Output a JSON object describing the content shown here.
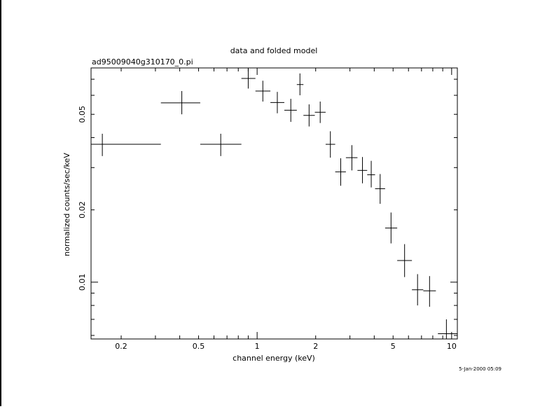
{
  "chart_data": {
    "type": "scatter",
    "title": "data and folded model",
    "subtitle": "ad95009040g310170_0.pi",
    "xlabel": "channel energy (keV)",
    "ylabel": "normalized counts/sec/keV",
    "x_scale": "log",
    "y_scale": "log",
    "xlim": [
      0.14,
      10.7
    ],
    "ylim": [
      0.0058,
      0.078
    ],
    "x_ticks": [
      {
        "value": 0.2,
        "label": "0.2"
      },
      {
        "value": 0.5,
        "label": "0.5"
      },
      {
        "value": 1,
        "label": "1"
      },
      {
        "value": 2,
        "label": "2"
      },
      {
        "value": 5,
        "label": "5"
      },
      {
        "value": 10,
        "label": "10"
      }
    ],
    "y_ticks": [
      {
        "value": 0.01,
        "label": "0.01"
      },
      {
        "value": 0.02,
        "label": "0.02"
      },
      {
        "value": 0.05,
        "label": "0.05"
      }
    ],
    "grid": false,
    "legend": "none",
    "series": [
      {
        "points": [
          {
            "x": 0.16,
            "y": 0.0375,
            "xlo": 0.14,
            "xhi": 0.32,
            "ylo": 0.0335,
            "yhi": 0.0415
          },
          {
            "x": 0.41,
            "y": 0.0558,
            "xlo": 0.32,
            "xhi": 0.51,
            "ylo": 0.05,
            "yhi": 0.0625
          },
          {
            "x": 0.65,
            "y": 0.0375,
            "xlo": 0.51,
            "xhi": 0.83,
            "ylo": 0.0335,
            "yhi": 0.0415
          },
          {
            "x": 0.9,
            "y": 0.0705,
            "xlo": 0.83,
            "xhi": 0.98,
            "ylo": 0.064,
            "yhi": 0.0775
          },
          {
            "x": 1.07,
            "y": 0.0625,
            "xlo": 0.98,
            "xhi": 1.17,
            "ylo": 0.0565,
            "yhi": 0.069
          },
          {
            "x": 1.27,
            "y": 0.056,
            "xlo": 1.17,
            "xhi": 1.38,
            "ylo": 0.0505,
            "yhi": 0.062
          },
          {
            "x": 1.49,
            "y": 0.052,
            "xlo": 1.38,
            "xhi": 1.6,
            "ylo": 0.0465,
            "yhi": 0.058
          },
          {
            "x": 1.66,
            "y": 0.0665,
            "xlo": 1.6,
            "xhi": 1.73,
            "ylo": 0.06,
            "yhi": 0.074
          },
          {
            "x": 1.85,
            "y": 0.0495,
            "xlo": 1.73,
            "xhi": 1.98,
            "ylo": 0.0445,
            "yhi": 0.055
          },
          {
            "x": 2.11,
            "y": 0.051,
            "xlo": 1.98,
            "xhi": 2.25,
            "ylo": 0.046,
            "yhi": 0.0565
          },
          {
            "x": 2.38,
            "y": 0.0375,
            "xlo": 2.25,
            "xhi": 2.52,
            "ylo": 0.033,
            "yhi": 0.0425
          },
          {
            "x": 2.69,
            "y": 0.0288,
            "xlo": 2.52,
            "xhi": 2.86,
            "ylo": 0.0252,
            "yhi": 0.0328
          },
          {
            "x": 3.07,
            "y": 0.033,
            "xlo": 2.86,
            "xhi": 3.28,
            "ylo": 0.0292,
            "yhi": 0.0372
          },
          {
            "x": 3.48,
            "y": 0.0292,
            "xlo": 3.28,
            "xhi": 3.68,
            "ylo": 0.0258,
            "yhi": 0.0332
          },
          {
            "x": 3.86,
            "y": 0.028,
            "xlo": 3.68,
            "xhi": 4.04,
            "ylo": 0.0248,
            "yhi": 0.032
          },
          {
            "x": 4.29,
            "y": 0.0245,
            "xlo": 4.04,
            "xhi": 4.55,
            "ylo": 0.0212,
            "yhi": 0.0282
          },
          {
            "x": 4.88,
            "y": 0.0168,
            "xlo": 4.55,
            "xhi": 5.25,
            "ylo": 0.0145,
            "yhi": 0.0195
          },
          {
            "x": 5.73,
            "y": 0.0123,
            "xlo": 5.25,
            "xhi": 6.25,
            "ylo": 0.0105,
            "yhi": 0.0144
          },
          {
            "x": 6.68,
            "y": 0.0093,
            "xlo": 6.25,
            "xhi": 7.15,
            "ylo": 0.008,
            "yhi": 0.0108
          },
          {
            "x": 7.7,
            "y": 0.0092,
            "xlo": 7.15,
            "xhi": 8.3,
            "ylo": 0.0079,
            "yhi": 0.0106
          },
          {
            "x": 9.4,
            "y": 0.0061,
            "xlo": 8.5,
            "xhi": 10.7,
            "ylo": 0.0052,
            "yhi": 0.007
          }
        ]
      }
    ]
  },
  "footer": {
    "timestamp": "5-Jan-2000 05:09"
  }
}
